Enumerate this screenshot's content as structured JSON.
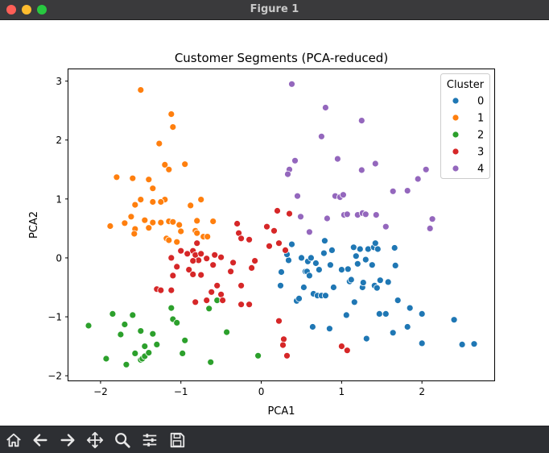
{
  "window": {
    "title": "Figure 1"
  },
  "toolbar": {
    "tools": [
      "home-icon",
      "back-arrow-icon",
      "forward-arrow-icon",
      "pan-icon",
      "zoom-icon",
      "subplots-config-icon",
      "save-icon"
    ]
  },
  "chart_data": {
    "type": "scatter",
    "title": "Customer Segments (PCA-reduced)",
    "xlabel": "PCA1",
    "ylabel": "PCA2",
    "xlim": [
      -2.4,
      2.9
    ],
    "ylim": [
      -2.08,
      3.2
    ],
    "xticks": [
      -2,
      -1,
      0,
      1,
      2
    ],
    "yticks": [
      -2,
      -1,
      0,
      1,
      2,
      3
    ],
    "xtick_labels": [
      "−2",
      "−1",
      "0",
      "1",
      "2"
    ],
    "ytick_labels": [
      "−2",
      "−1",
      "0",
      "1",
      "2",
      "3"
    ],
    "grid": false,
    "legend": {
      "title": "Cluster",
      "placement": "top-right"
    },
    "series": [
      {
        "name": "0",
        "color": "#1f77b4",
        "points": [
          [
            0.24,
            -0.47
          ],
          [
            0.25,
            -0.24
          ],
          [
            0.34,
            -0.04
          ],
          [
            0.32,
            0.06
          ],
          [
            0.38,
            0.23
          ],
          [
            0.44,
            -0.73
          ],
          [
            0.47,
            -0.69
          ],
          [
            0.5,
            0.0
          ],
          [
            0.53,
            -0.5
          ],
          [
            0.55,
            -0.23
          ],
          [
            0.57,
            -0.23
          ],
          [
            0.58,
            -0.06
          ],
          [
            0.6,
            -0.3
          ],
          [
            0.6,
            0.43
          ],
          [
            0.62,
            0.0
          ],
          [
            0.64,
            -1.17
          ],
          [
            0.65,
            -0.61
          ],
          [
            0.68,
            -0.09
          ],
          [
            0.7,
            -0.64
          ],
          [
            0.72,
            -0.2
          ],
          [
            0.75,
            -0.64
          ],
          [
            0.78,
            0.08
          ],
          [
            0.79,
            0.29
          ],
          [
            0.8,
            -0.64
          ],
          [
            0.85,
            -1.2
          ],
          [
            0.86,
            -0.12
          ],
          [
            0.88,
            0.13
          ],
          [
            0.9,
            -0.5
          ],
          [
            1.0,
            -0.2
          ],
          [
            1.06,
            -0.97
          ],
          [
            1.08,
            -0.19
          ],
          [
            1.1,
            -0.4
          ],
          [
            1.12,
            -0.37
          ],
          [
            1.15,
            0.18
          ],
          [
            1.16,
            -0.75
          ],
          [
            1.18,
            0.03
          ],
          [
            1.2,
            -0.1
          ],
          [
            1.23,
            0.15
          ],
          [
            1.26,
            -0.5
          ],
          [
            1.27,
            -0.42
          ],
          [
            1.3,
            -0.03
          ],
          [
            1.31,
            -1.37
          ],
          [
            1.33,
            0.15
          ],
          [
            1.38,
            -0.12
          ],
          [
            1.4,
            0.18
          ],
          [
            1.41,
            -0.47
          ],
          [
            1.42,
            0.25
          ],
          [
            1.44,
            -0.51
          ],
          [
            1.45,
            0.15
          ],
          [
            1.47,
            -0.95
          ],
          [
            1.48,
            -0.38
          ],
          [
            1.55,
            -0.95
          ],
          [
            1.58,
            -0.41
          ],
          [
            1.64,
            -1.27
          ],
          [
            1.66,
            0.17
          ],
          [
            1.67,
            -0.13
          ],
          [
            1.7,
            -0.72
          ],
          [
            1.82,
            -1.17
          ],
          [
            1.85,
            -0.85
          ],
          [
            2.0,
            -0.95
          ],
          [
            2.0,
            -1.45
          ],
          [
            2.4,
            -1.05
          ],
          [
            2.5,
            -1.47
          ],
          [
            2.65,
            -1.46
          ]
        ]
      },
      {
        "name": "1",
        "color": "#ff7f0e",
        "points": [
          [
            -1.5,
            2.85
          ],
          [
            -1.12,
            2.44
          ],
          [
            -1.1,
            2.22
          ],
          [
            -1.27,
            1.94
          ],
          [
            -1.6,
            1.35
          ],
          [
            -1.8,
            1.37
          ],
          [
            -1.2,
            1.58
          ],
          [
            -1.15,
            1.5
          ],
          [
            -0.95,
            1.59
          ],
          [
            -1.4,
            1.33
          ],
          [
            -1.35,
            1.18
          ],
          [
            -1.35,
            0.95
          ],
          [
            -1.5,
            0.99
          ],
          [
            -1.57,
            0.9
          ],
          [
            -1.2,
            0.99
          ],
          [
            -1.25,
            0.95
          ],
          [
            -0.88,
            0.89
          ],
          [
            -0.75,
            0.99
          ],
          [
            -1.62,
            0.7
          ],
          [
            -1.45,
            0.64
          ],
          [
            -1.35,
            0.6
          ],
          [
            -1.25,
            0.6
          ],
          [
            -1.15,
            0.62
          ],
          [
            -1.1,
            0.61
          ],
          [
            -1.02,
            0.56
          ],
          [
            -0.8,
            0.63
          ],
          [
            -0.6,
            0.62
          ],
          [
            -1.7,
            0.59
          ],
          [
            -1.88,
            0.54
          ],
          [
            -1.57,
            0.49
          ],
          [
            -1.58,
            0.41
          ],
          [
            -1.4,
            0.51
          ],
          [
            -1.18,
            0.33
          ],
          [
            -1.15,
            0.3
          ],
          [
            -1.05,
            0.27
          ],
          [
            -1.0,
            0.45
          ],
          [
            -0.82,
            0.46
          ],
          [
            -0.8,
            0.42
          ],
          [
            -0.72,
            0.36
          ],
          [
            -0.67,
            0.36
          ]
        ]
      },
      {
        "name": "2",
        "color": "#2ca02c",
        "points": [
          [
            -2.15,
            -1.15
          ],
          [
            -1.85,
            -0.95
          ],
          [
            -1.93,
            -1.71
          ],
          [
            -1.75,
            -1.3
          ],
          [
            -1.7,
            -1.13
          ],
          [
            -1.6,
            -0.97
          ],
          [
            -1.68,
            -1.81
          ],
          [
            -1.57,
            -1.62
          ],
          [
            -1.5,
            -1.24
          ],
          [
            -1.5,
            -1.73
          ],
          [
            -1.48,
            -1.71
          ],
          [
            -1.45,
            -1.67
          ],
          [
            -1.45,
            -1.5
          ],
          [
            -1.4,
            -1.61
          ],
          [
            -1.35,
            -1.29
          ],
          [
            -1.3,
            -1.47
          ],
          [
            -1.12,
            -0.85
          ],
          [
            -1.1,
            -1.04
          ],
          [
            -1.05,
            -1.1
          ],
          [
            -0.98,
            -1.62
          ],
          [
            -0.95,
            -1.4
          ],
          [
            -0.65,
            -0.86
          ],
          [
            -0.63,
            -1.77
          ],
          [
            -0.55,
            -0.72
          ],
          [
            -0.43,
            -1.26
          ],
          [
            -0.04,
            -1.66
          ]
        ]
      },
      {
        "name": "3",
        "color": "#d62728",
        "points": [
          [
            0.2,
            0.8
          ],
          [
            0.35,
            0.75
          ],
          [
            0.07,
            0.53
          ],
          [
            0.16,
            0.46
          ],
          [
            0.22,
            0.25
          ],
          [
            0.3,
            0.13
          ],
          [
            0.1,
            0.2
          ],
          [
            -0.3,
            0.58
          ],
          [
            -0.28,
            0.42
          ],
          [
            -0.25,
            0.33
          ],
          [
            -0.15,
            0.31
          ],
          [
            -0.08,
            -0.05
          ],
          [
            -0.12,
            -0.17
          ],
          [
            -0.25,
            -0.47
          ],
          [
            -0.15,
            -0.79
          ],
          [
            -0.25,
            -0.79
          ],
          [
            0.28,
            -1.38
          ],
          [
            0.27,
            -1.48
          ],
          [
            0.32,
            -1.66
          ],
          [
            0.22,
            -1.07
          ],
          [
            1.0,
            -1.5
          ],
          [
            1.07,
            -1.57
          ],
          [
            -0.8,
            0.25
          ],
          [
            -0.85,
            0.12
          ],
          [
            -0.82,
            0.05
          ],
          [
            -0.75,
            0.07
          ],
          [
            -0.78,
            -0.04
          ],
          [
            -0.68,
            -0.01
          ],
          [
            -0.6,
            -0.12
          ],
          [
            -0.58,
            0.05
          ],
          [
            -0.5,
            0.01
          ],
          [
            -0.55,
            -0.47
          ],
          [
            -0.5,
            -0.62
          ],
          [
            -0.48,
            -0.72
          ],
          [
            -0.38,
            -0.23
          ],
          [
            -0.35,
            -0.08
          ],
          [
            -1.12,
            0.0
          ],
          [
            -1.0,
            0.12
          ],
          [
            -0.92,
            0.07
          ],
          [
            -0.85,
            -0.05
          ],
          [
            -1.05,
            -0.15
          ],
          [
            -0.9,
            -0.2
          ],
          [
            -0.85,
            -0.28
          ],
          [
            -0.75,
            -0.29
          ],
          [
            -1.1,
            -0.3
          ],
          [
            -1.3,
            -0.53
          ],
          [
            -1.25,
            -0.55
          ],
          [
            -1.12,
            -0.55
          ],
          [
            -0.82,
            -0.75
          ],
          [
            -0.68,
            -0.72
          ],
          [
            -0.62,
            -0.58
          ]
        ]
      },
      {
        "name": "4",
        "color": "#9467bd",
        "points": [
          [
            0.38,
            2.95
          ],
          [
            0.8,
            2.55
          ],
          [
            1.25,
            2.33
          ],
          [
            0.75,
            2.06
          ],
          [
            0.42,
            1.65
          ],
          [
            0.35,
            1.5
          ],
          [
            0.33,
            1.42
          ],
          [
            0.95,
            1.68
          ],
          [
            1.25,
            1.49
          ],
          [
            1.42,
            1.6
          ],
          [
            1.82,
            1.14
          ],
          [
            1.95,
            1.34
          ],
          [
            2.05,
            1.5
          ],
          [
            0.45,
            1.05
          ],
          [
            0.92,
            1.05
          ],
          [
            0.98,
            1.03
          ],
          [
            1.02,
            1.07
          ],
          [
            1.64,
            1.13
          ],
          [
            0.49,
            0.7
          ],
          [
            0.82,
            0.67
          ],
          [
            1.03,
            0.73
          ],
          [
            1.07,
            0.74
          ],
          [
            1.2,
            0.73
          ],
          [
            1.26,
            0.76
          ],
          [
            1.3,
            0.74
          ],
          [
            1.43,
            0.73
          ],
          [
            1.55,
            0.53
          ],
          [
            2.1,
            0.5
          ],
          [
            2.13,
            0.66
          ],
          [
            0.6,
            0.44
          ]
        ]
      }
    ]
  }
}
